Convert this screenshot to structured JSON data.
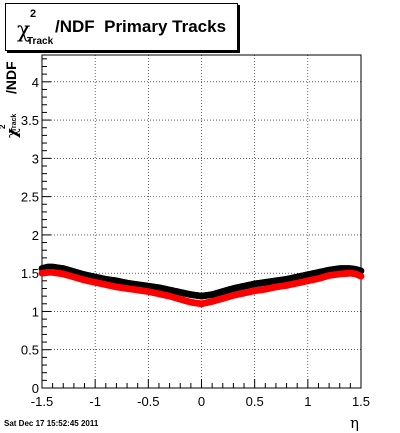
{
  "title": {
    "chi": "χ",
    "superscript": "2",
    "subscript": "Track",
    "main": "/NDF  Primary Tracks"
  },
  "y_title": {
    "chi": "χ",
    "superscript": "2",
    "subscript": "Track",
    "suffix": "/NDF"
  },
  "x_title": "η",
  "datestamp": "Sat Dec 17 15:52:45 2011",
  "chart_data": {
    "type": "scatter",
    "xlim": [
      -1.5,
      1.5
    ],
    "ylim": [
      0,
      4.35
    ],
    "x_ticks": [
      "-1.5",
      "-1",
      "-0.5",
      "0",
      "0.5",
      "1",
      "1.5"
    ],
    "x_tick_values": [
      -1.5,
      -1,
      -0.5,
      0,
      0.5,
      1,
      1.5
    ],
    "y_ticks": [
      "0",
      "0.5",
      "1",
      "1.5",
      "2",
      "2.5",
      "3",
      "3.5",
      "4"
    ],
    "y_tick_values": [
      0,
      0.5,
      1,
      1.5,
      2,
      2.5,
      3,
      3.5,
      4
    ],
    "grid": true,
    "series": [
      {
        "color": "#000000",
        "x": [
          -1.5,
          -1.45,
          -1.4,
          -1.3,
          -1.2,
          -1.1,
          -1.0,
          -0.9,
          -0.8,
          -0.7,
          -0.6,
          -0.5,
          -0.4,
          -0.3,
          -0.2,
          -0.1,
          0.0,
          0.1,
          0.2,
          0.3,
          0.4,
          0.5,
          0.6,
          0.7,
          0.8,
          0.9,
          1.0,
          1.1,
          1.2,
          1.3,
          1.4,
          1.45,
          1.5
        ],
        "y": [
          1.56,
          1.58,
          1.58,
          1.56,
          1.52,
          1.48,
          1.45,
          1.42,
          1.4,
          1.37,
          1.35,
          1.33,
          1.31,
          1.28,
          1.25,
          1.22,
          1.2,
          1.22,
          1.26,
          1.3,
          1.33,
          1.36,
          1.38,
          1.4,
          1.42,
          1.45,
          1.48,
          1.51,
          1.54,
          1.56,
          1.56,
          1.55,
          1.53
        ]
      },
      {
        "color": "#ff0000",
        "x": [
          -1.5,
          -1.45,
          -1.4,
          -1.3,
          -1.2,
          -1.1,
          -1.0,
          -0.9,
          -0.8,
          -0.7,
          -0.6,
          -0.5,
          -0.4,
          -0.3,
          -0.2,
          -0.1,
          0.0,
          0.1,
          0.2,
          0.3,
          0.4,
          0.5,
          0.6,
          0.7,
          0.8,
          0.9,
          1.0,
          1.1,
          1.2,
          1.3,
          1.4,
          1.45,
          1.5
        ],
        "y": [
          1.5,
          1.51,
          1.51,
          1.49,
          1.45,
          1.41,
          1.38,
          1.35,
          1.32,
          1.3,
          1.28,
          1.26,
          1.23,
          1.2,
          1.16,
          1.12,
          1.1,
          1.13,
          1.17,
          1.21,
          1.24,
          1.27,
          1.29,
          1.32,
          1.34,
          1.37,
          1.4,
          1.43,
          1.47,
          1.49,
          1.5,
          1.49,
          1.46
        ]
      }
    ]
  }
}
